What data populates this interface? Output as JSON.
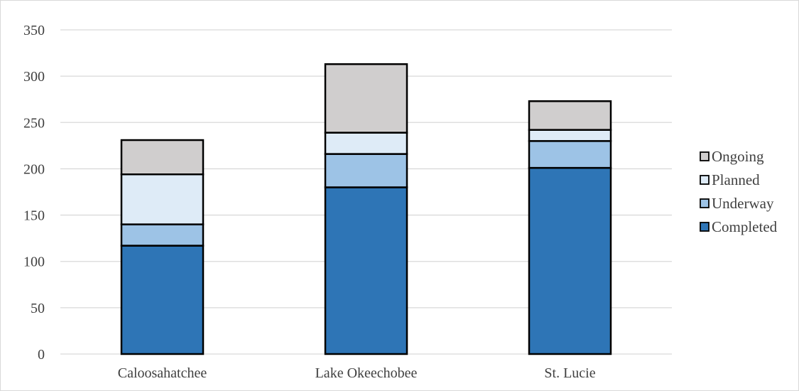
{
  "chart_data": {
    "type": "bar",
    "stacked": true,
    "categories": [
      "Caloosahatchee",
      "Lake Okeechobee",
      "St. Lucie"
    ],
    "series": [
      {
        "name": "Completed",
        "values": [
          117,
          180,
          201
        ],
        "color": "#2e75b6"
      },
      {
        "name": "Underway",
        "values": [
          23,
          36,
          29
        ],
        "color": "#9dc3e6"
      },
      {
        "name": "Planned",
        "values": [
          54,
          23,
          12
        ],
        "color": "#deebf7"
      },
      {
        "name": "Ongoing",
        "values": [
          37,
          74,
          31
        ],
        "color": "#d0cece"
      }
    ],
    "title": "",
    "xlabel": "",
    "ylabel": "",
    "ylim": [
      0,
      350
    ],
    "yticks": [
      0,
      50,
      100,
      150,
      200,
      250,
      300,
      350
    ],
    "grid": true,
    "legend_position": "right",
    "legend_order": [
      "Ongoing",
      "Planned",
      "Underway",
      "Completed"
    ]
  }
}
